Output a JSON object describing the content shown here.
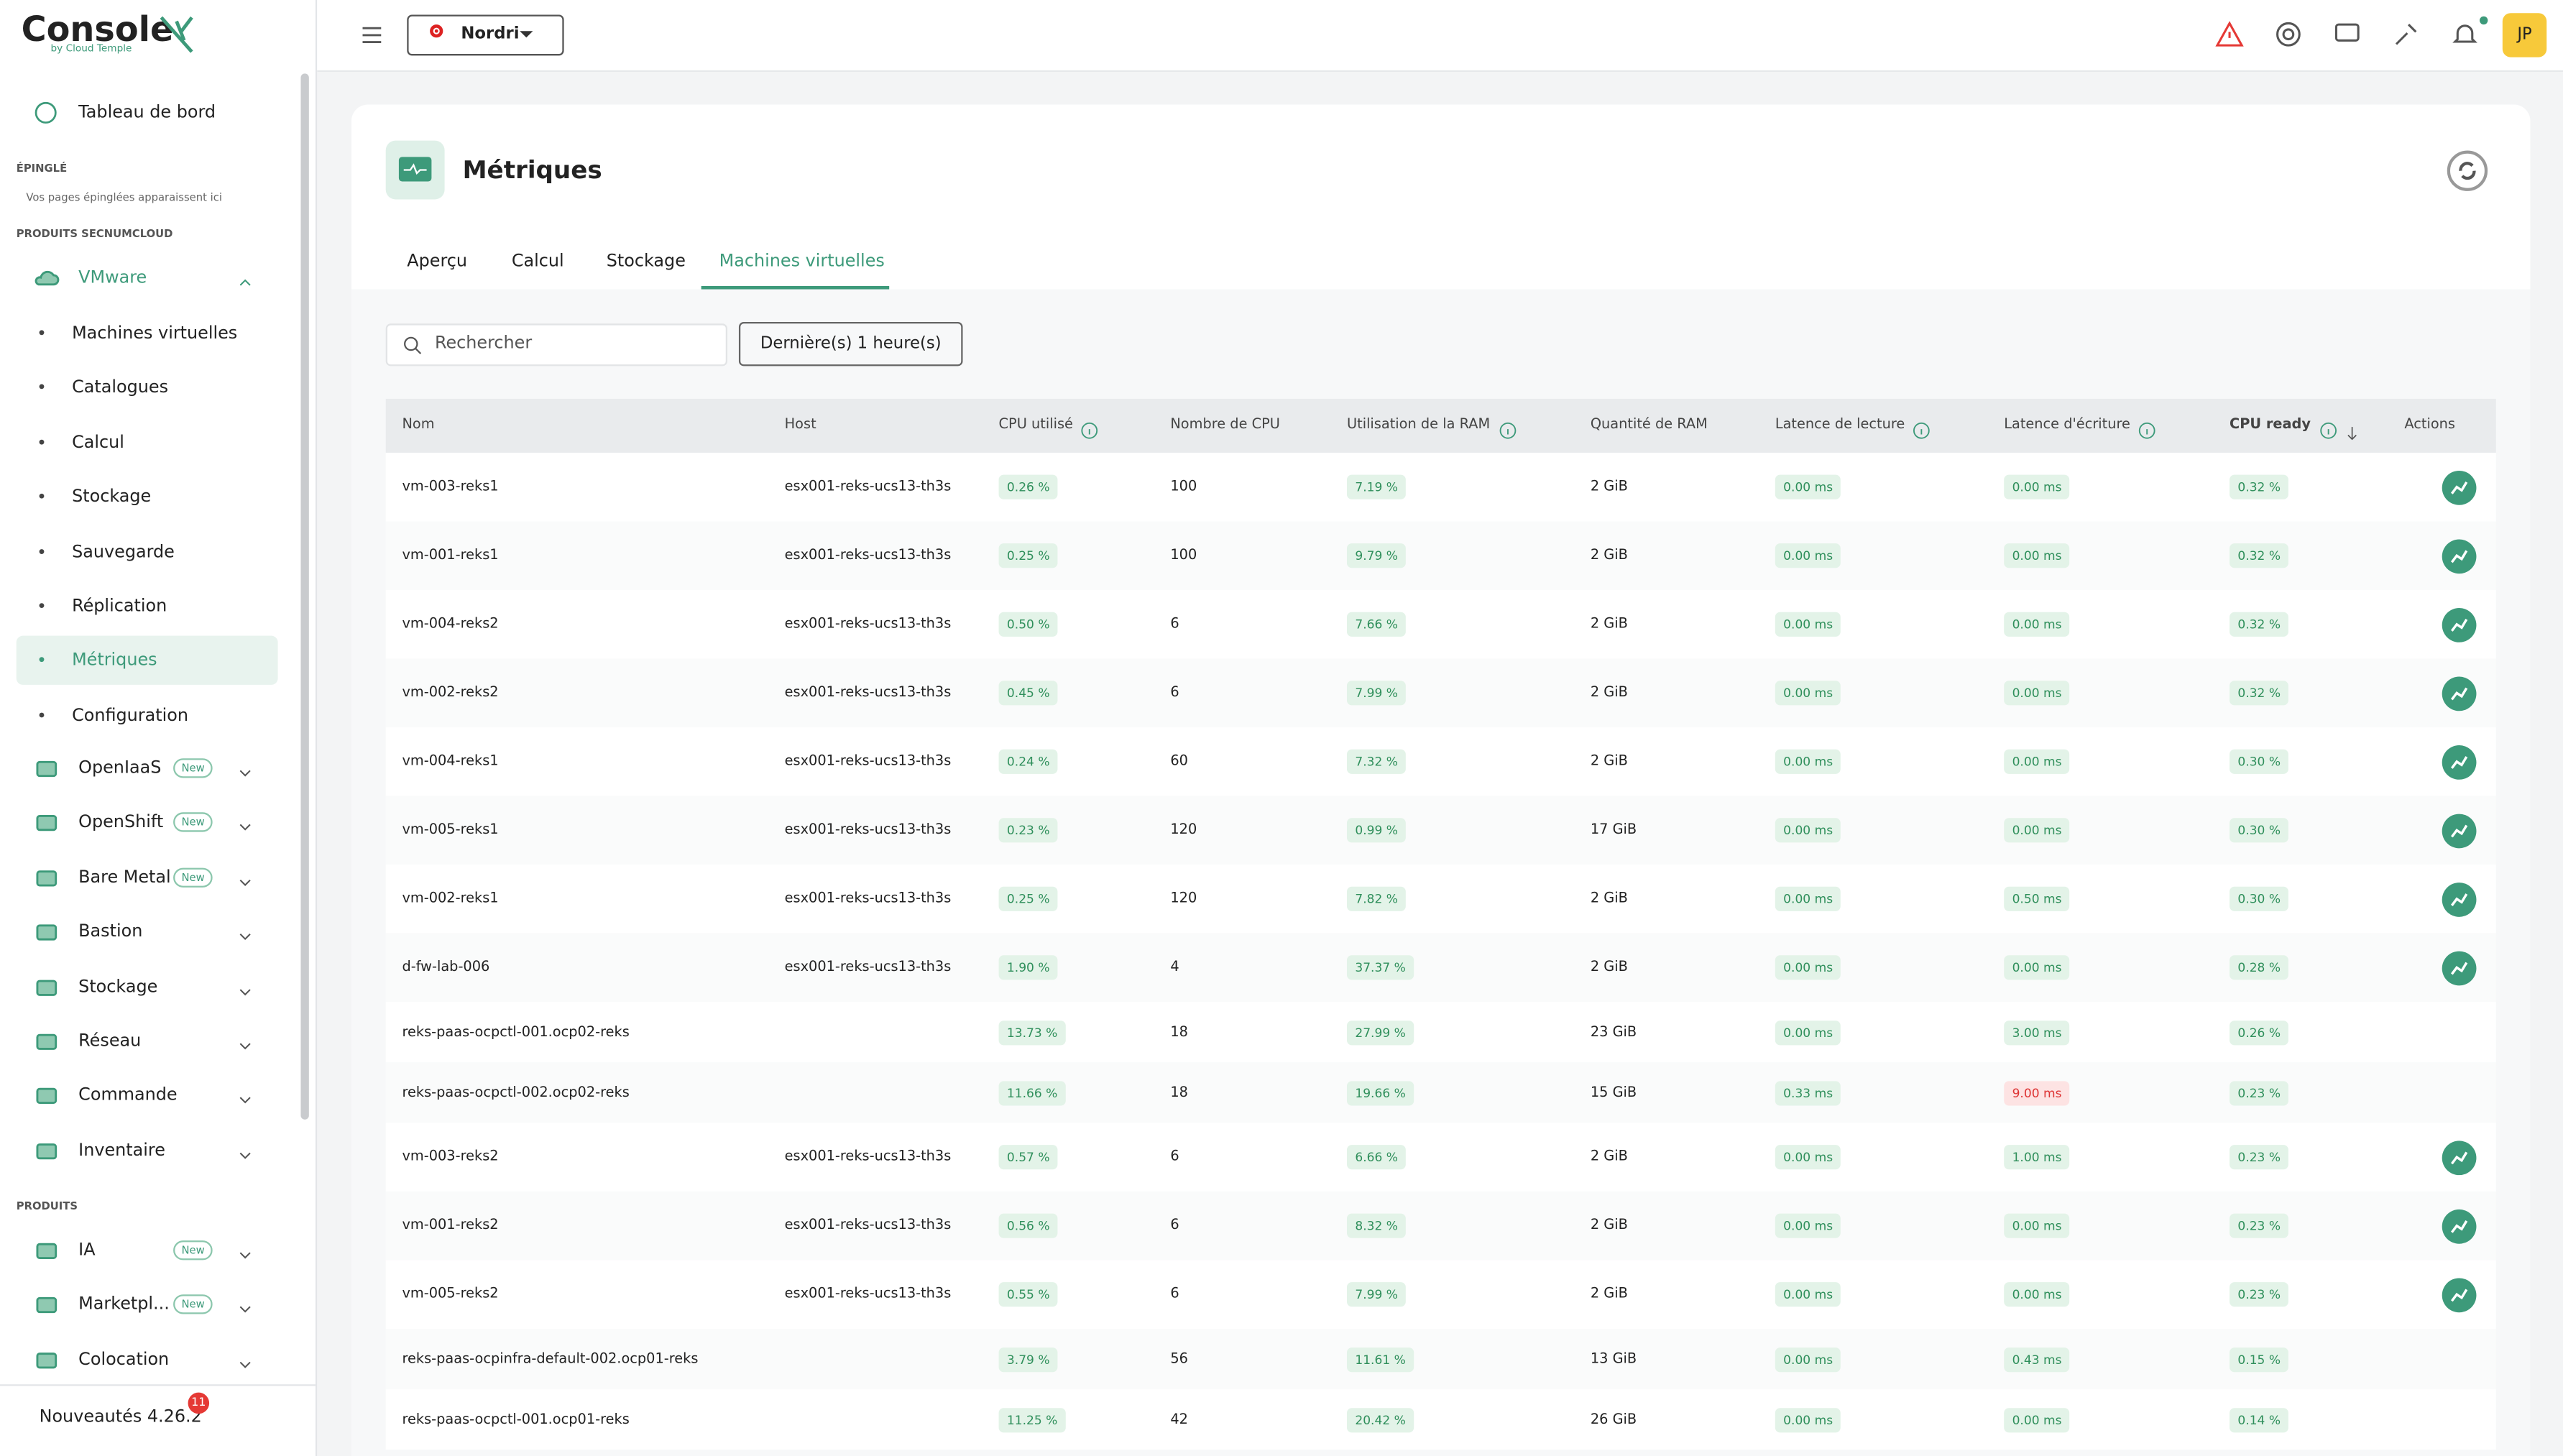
{
  "brand": {
    "name": "Console",
    "sub": "by Cloud Temple"
  },
  "topbar": {
    "tenant": "Nordri",
    "avatar": "JP"
  },
  "sidebar": {
    "home": "Tableau de bord",
    "pinned_title": "ÉPINGLÉ",
    "pinned_empty": "Vos pages épinglées apparaissent ici",
    "section1": "PRODUITS SECNUMCLOUD",
    "vmware": "VMware",
    "vmware_items": [
      "Machines virtuelles",
      "Catalogues",
      "Calcul",
      "Stockage",
      "Sauvegarde",
      "Réplication",
      "Métriques",
      "Configuration"
    ],
    "products1": [
      {
        "label": "OpenIaaS",
        "badge": "New"
      },
      {
        "label": "OpenShift",
        "badge": "New"
      },
      {
        "label": "Bare Metal",
        "badge": "New"
      },
      {
        "label": "Bastion"
      },
      {
        "label": "Stockage"
      },
      {
        "label": "Réseau"
      },
      {
        "label": "Commande"
      },
      {
        "label": "Inventaire"
      }
    ],
    "section2": "PRODUITS",
    "products2": [
      {
        "label": "IA",
        "badge": "New"
      },
      {
        "label": "Marketpl...",
        "badge": "New"
      },
      {
        "label": "Colocation"
      }
    ],
    "news": "Nouveautés 4.26.2",
    "news_count": "11"
  },
  "header": {
    "title": "Métriques",
    "tabs": [
      "Aperçu",
      "Calcul",
      "Stockage",
      "Machines virtuelles"
    ],
    "active_tab": 3
  },
  "toolbar": {
    "search": "Rechercher",
    "range": "Dernière(s) 1 heure(s)"
  },
  "table": {
    "columns": [
      "Nom",
      "Host",
      "CPU utilisé",
      "Nombre de CPU",
      "Utilisation de la RAM",
      "Quantité de RAM",
      "Latence de lecture",
      "Latence d'écriture",
      "CPU ready",
      "Actions"
    ],
    "rows": [
      [
        "vm-003-reks1",
        "esx001-reks-ucs13-th3s",
        "0.26 %",
        "100",
        "7.19 %",
        "2 GiB",
        "0.00 ms",
        "0.00 ms",
        "0.32 %"
      ],
      [
        "vm-001-reks1",
        "esx001-reks-ucs13-th3s",
        "0.25 %",
        "100",
        "9.79 %",
        "2 GiB",
        "0.00 ms",
        "0.00 ms",
        "0.32 %"
      ],
      [
        "vm-004-reks2",
        "esx001-reks-ucs13-th3s",
        "0.50 %",
        "6",
        "7.66 %",
        "2 GiB",
        "0.00 ms",
        "0.00 ms",
        "0.32 %"
      ],
      [
        "vm-002-reks2",
        "esx001-reks-ucs13-th3s",
        "0.45 %",
        "6",
        "7.99 %",
        "2 GiB",
        "0.00 ms",
        "0.00 ms",
        "0.32 %"
      ],
      [
        "vm-004-reks1",
        "esx001-reks-ucs13-th3s",
        "0.24 %",
        "60",
        "7.32 %",
        "2 GiB",
        "0.00 ms",
        "0.00 ms",
        "0.30 %"
      ],
      [
        "vm-005-reks1",
        "esx001-reks-ucs13-th3s",
        "0.23 %",
        "120",
        "0.99 %",
        "17 GiB",
        "0.00 ms",
        "0.00 ms",
        "0.30 %"
      ],
      [
        "vm-002-reks1",
        "esx001-reks-ucs13-th3s",
        "0.25 %",
        "120",
        "7.82 %",
        "2 GiB",
        "0.00 ms",
        "0.50 ms",
        "0.30 %"
      ],
      [
        "d-fw-lab-006",
        "esx001-reks-ucs13-th3s",
        "1.90 %",
        "4",
        "37.37 %",
        "2 GiB",
        "0.00 ms",
        "0.00 ms",
        "0.28 %"
      ],
      [
        "reks-paas-ocpctl-001.ocp02-reks",
        null,
        "13.73 %",
        "18",
        "27.99 %",
        "23 GiB",
        "0.00 ms",
        "3.00 ms",
        "0.26 %"
      ],
      [
        "reks-paas-ocpctl-002.ocp02-reks",
        null,
        "11.66 %",
        "18",
        "19.66 %",
        "15 GiB",
        "0.33 ms",
        "9.00 ms",
        "0.23 %"
      ],
      [
        "vm-003-reks2",
        "esx001-reks-ucs13-th3s",
        "0.57 %",
        "6",
        "6.66 %",
        "2 GiB",
        "0.00 ms",
        "1.00 ms",
        "0.23 %"
      ],
      [
        "vm-001-reks2",
        "esx001-reks-ucs13-th3s",
        "0.56 %",
        "6",
        "8.32 %",
        "2 GiB",
        "0.00 ms",
        "0.00 ms",
        "0.23 %"
      ],
      [
        "vm-005-reks2",
        "esx001-reks-ucs13-th3s",
        "0.55 %",
        "6",
        "7.99 %",
        "2 GiB",
        "0.00 ms",
        "0.00 ms",
        "0.23 %"
      ],
      [
        "reks-paas-ocpinfra-default-002.ocp01-reks",
        null,
        "3.79 %",
        "56",
        "11.61 %",
        "13 GiB",
        "0.00 ms",
        "0.43 ms",
        "0.15 %"
      ],
      [
        "reks-paas-ocpctl-001.ocp01-reks",
        null,
        "11.25 %",
        "42",
        "20.42 %",
        "26 GiB",
        "0.00 ms",
        "0.00 ms",
        "0.14 %"
      ]
    ]
  }
}
